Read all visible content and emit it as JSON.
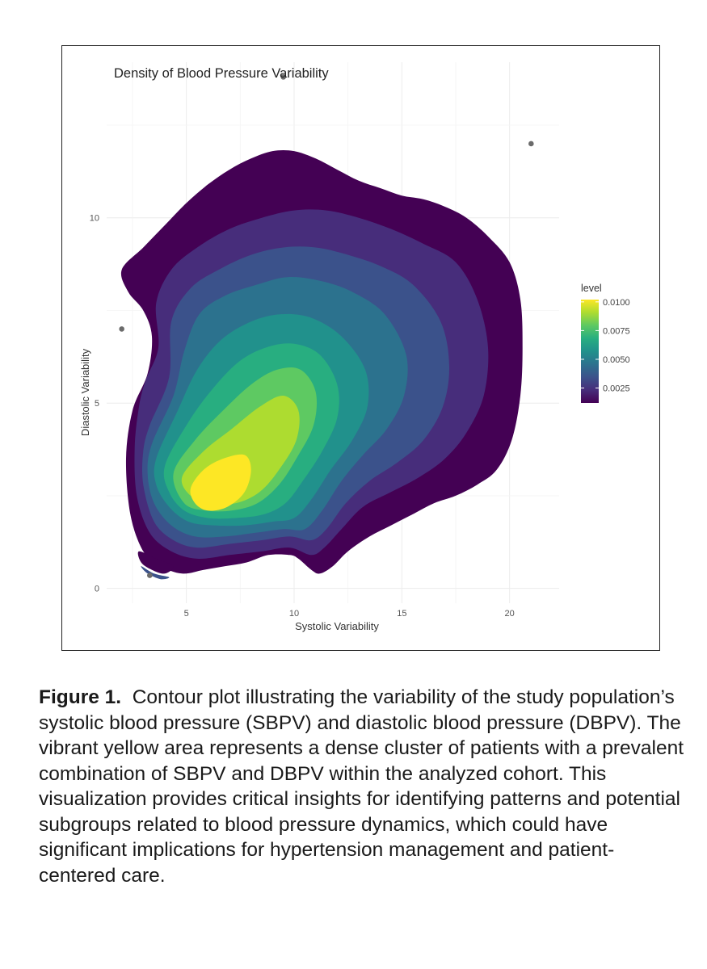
{
  "chart_data": {
    "type": "contour",
    "title": "Density of Blood Pressure Variability",
    "xlabel": "Systolic Variability",
    "ylabel": "Diastolic Variability",
    "xlim": [
      1.3,
      22.3
    ],
    "ylim": [
      -0.4,
      14.2
    ],
    "x_ticks": [
      5,
      10,
      15,
      20
    ],
    "y_ticks": [
      0,
      5,
      10
    ],
    "legend": {
      "title": "level",
      "range": [
        0.0012,
        0.0102
      ],
      "ticks": [
        {
          "value": 0.0025,
          "label": "0.0025"
        },
        {
          "value": 0.005,
          "label": "0.0050"
        },
        {
          "value": 0.0075,
          "label": "0.0075"
        },
        {
          "value": 0.01,
          "label": "0.0100"
        }
      ]
    },
    "peak": {
      "x": 6.5,
      "y": 2.6
    },
    "levels": [
      {
        "level": 0.0012,
        "color": "#440154",
        "polygon": [
          [
            2,
            8.6
          ],
          [
            3,
            9.2
          ],
          [
            4,
            9.8
          ],
          [
            5,
            10.4
          ],
          [
            6,
            10.9
          ],
          [
            7,
            11.3
          ],
          [
            8,
            11.6
          ],
          [
            9,
            11.8
          ],
          [
            10,
            11.8
          ],
          [
            11,
            11.6
          ],
          [
            12,
            11.3
          ],
          [
            13,
            11.0
          ],
          [
            14,
            10.8
          ],
          [
            15,
            10.6
          ],
          [
            16,
            10.5
          ],
          [
            17,
            10.3
          ],
          [
            18,
            10.0
          ],
          [
            19,
            9.5
          ],
          [
            20,
            8.8
          ],
          [
            20.5,
            7.8
          ],
          [
            20.6,
            6.5
          ],
          [
            20.5,
            5.2
          ],
          [
            20.1,
            4.0
          ],
          [
            19.4,
            3.2
          ],
          [
            18.5,
            2.8
          ],
          [
            17.5,
            2.5
          ],
          [
            16.5,
            2.3
          ],
          [
            15.5,
            2.0
          ],
          [
            14.5,
            1.7
          ],
          [
            13.5,
            1.4
          ],
          [
            12.5,
            1.0
          ],
          [
            11.8,
            0.6
          ],
          [
            11.2,
            0.4
          ],
          [
            10.8,
            0.5
          ],
          [
            10.2,
            0.8
          ],
          [
            9.8,
            0.9
          ],
          [
            8.8,
            0.9
          ],
          [
            7.8,
            0.7
          ],
          [
            6.8,
            0.6
          ],
          [
            5.8,
            0.5
          ],
          [
            4.8,
            0.4
          ],
          [
            3.8,
            0.6
          ],
          [
            3.0,
            1.0
          ],
          [
            2.4,
            2.0
          ],
          [
            2.2,
            3.5
          ],
          [
            2.5,
            4.8
          ],
          [
            3.2,
            5.8
          ],
          [
            3.4,
            6.8
          ],
          [
            3.0,
            7.5
          ],
          [
            2.3,
            8.0
          ]
        ]
      },
      {
        "level": 0.0025,
        "color": "#472d7b",
        "polygon": [
          [
            3.1,
            5.6
          ],
          [
            3.7,
            6.5
          ],
          [
            3.6,
            7.7
          ],
          [
            4.3,
            8.6
          ],
          [
            5.5,
            9.2
          ],
          [
            7,
            9.7
          ],
          [
            8.5,
            10.0
          ],
          [
            10,
            10.2
          ],
          [
            11.5,
            10.2
          ],
          [
            13,
            10.0
          ],
          [
            14.5,
            9.7
          ],
          [
            16,
            9.3
          ],
          [
            17.5,
            8.8
          ],
          [
            18.5,
            7.8
          ],
          [
            19.0,
            6.5
          ],
          [
            18.8,
            5.2
          ],
          [
            18.0,
            4.2
          ],
          [
            17.0,
            3.5
          ],
          [
            15.8,
            3.0
          ],
          [
            14.5,
            2.6
          ],
          [
            13.2,
            2.2
          ],
          [
            12.2,
            1.6
          ],
          [
            11.4,
            1.1
          ],
          [
            10.8,
            0.9
          ],
          [
            9.8,
            1.1
          ],
          [
            8.5,
            1.0
          ],
          [
            7.0,
            0.9
          ],
          [
            5.5,
            0.8
          ],
          [
            4.3,
            1.0
          ],
          [
            3.3,
            1.5
          ],
          [
            2.7,
            2.5
          ],
          [
            2.6,
            3.8
          ],
          [
            2.8,
            4.9
          ]
        ]
      },
      {
        "level": 0.0035,
        "color": "#3b528b",
        "polygon": [
          [
            3.3,
            4.4
          ],
          [
            4.2,
            5.7
          ],
          [
            4.3,
            7.2
          ],
          [
            5.2,
            8.1
          ],
          [
            6.5,
            8.6
          ],
          [
            8,
            9.0
          ],
          [
            9.5,
            9.2
          ],
          [
            11,
            9.2
          ],
          [
            12.5,
            9.0
          ],
          [
            14,
            8.7
          ],
          [
            15.5,
            8.2
          ],
          [
            16.8,
            7.2
          ],
          [
            17.2,
            6.0
          ],
          [
            16.9,
            4.9
          ],
          [
            16.0,
            4.0
          ],
          [
            14.8,
            3.4
          ],
          [
            13.5,
            2.9
          ],
          [
            12.4,
            2.3
          ],
          [
            11.5,
            1.6
          ],
          [
            10.8,
            1.3
          ],
          [
            9.8,
            1.4
          ],
          [
            8.5,
            1.3
          ],
          [
            7.0,
            1.2
          ],
          [
            5.5,
            1.1
          ],
          [
            4.4,
            1.3
          ],
          [
            3.5,
            1.8
          ],
          [
            3.0,
            2.8
          ],
          [
            3.0,
            3.7
          ]
        ]
      },
      {
        "level": 0.0045,
        "color": "#2c728e",
        "polygon": [
          [
            3.4,
            3.9
          ],
          [
            4.4,
            5.2
          ],
          [
            4.9,
            6.4
          ],
          [
            5.6,
            7.4
          ],
          [
            6.8,
            7.9
          ],
          [
            8.3,
            8.2
          ],
          [
            9.7,
            8.4
          ],
          [
            11.2,
            8.3
          ],
          [
            12.7,
            8.0
          ],
          [
            14.2,
            7.4
          ],
          [
            15.2,
            6.3
          ],
          [
            15.1,
            5.2
          ],
          [
            14.3,
            4.3
          ],
          [
            13.2,
            3.6
          ],
          [
            12.2,
            2.9
          ],
          [
            11.3,
            2.1
          ],
          [
            10.5,
            1.6
          ],
          [
            9.5,
            1.6
          ],
          [
            8.2,
            1.5
          ],
          [
            6.8,
            1.4
          ],
          [
            5.4,
            1.4
          ],
          [
            4.3,
            1.7
          ],
          [
            3.5,
            2.3
          ],
          [
            3.2,
            3.1
          ]
        ]
      },
      {
        "level": 0.0055,
        "color": "#21918c",
        "polygon": [
          [
            3.6,
            3.5
          ],
          [
            4.6,
            4.8
          ],
          [
            5.5,
            5.9
          ],
          [
            6.6,
            6.7
          ],
          [
            8.0,
            7.2
          ],
          [
            9.4,
            7.4
          ],
          [
            10.8,
            7.3
          ],
          [
            12.2,
            6.8
          ],
          [
            13.3,
            5.9
          ],
          [
            13.4,
            4.9
          ],
          [
            12.7,
            4.0
          ],
          [
            11.7,
            3.2
          ],
          [
            10.8,
            2.4
          ],
          [
            10.0,
            1.9
          ],
          [
            9.0,
            1.8
          ],
          [
            7.7,
            1.7
          ],
          [
            6.3,
            1.7
          ],
          [
            5.1,
            1.8
          ],
          [
            4.2,
            2.2
          ],
          [
            3.6,
            2.8
          ]
        ]
      },
      {
        "level": 0.0065,
        "color": "#28ae80",
        "polygon": [
          [
            4.0,
            3.3
          ],
          [
            5.0,
            4.4
          ],
          [
            6.1,
            5.3
          ],
          [
            7.4,
            6.1
          ],
          [
            8.7,
            6.5
          ],
          [
            10.0,
            6.6
          ],
          [
            11.2,
            6.3
          ],
          [
            12.0,
            5.5
          ],
          [
            12.0,
            4.6
          ],
          [
            11.3,
            3.7
          ],
          [
            10.4,
            2.9
          ],
          [
            9.6,
            2.3
          ],
          [
            8.6,
            2.0
          ],
          [
            7.3,
            1.9
          ],
          [
            6.0,
            1.9
          ],
          [
            4.9,
            2.1
          ],
          [
            4.2,
            2.6
          ]
        ]
      },
      {
        "level": 0.0075,
        "color": "#5ec962",
        "polygon": [
          [
            4.4,
            3.1
          ],
          [
            5.4,
            4.0
          ],
          [
            6.7,
            4.8
          ],
          [
            8.0,
            5.5
          ],
          [
            9.2,
            5.9
          ],
          [
            10.3,
            5.9
          ],
          [
            11.0,
            5.3
          ],
          [
            10.9,
            4.4
          ],
          [
            10.1,
            3.5
          ],
          [
            9.3,
            2.8
          ],
          [
            8.3,
            2.3
          ],
          [
            7.1,
            2.1
          ],
          [
            5.9,
            2.1
          ],
          [
            4.9,
            2.3
          ]
        ]
      },
      {
        "level": 0.0085,
        "color": "#addc30",
        "polygon": [
          [
            4.8,
            3.0
          ],
          [
            5.8,
            3.7
          ],
          [
            7.1,
            4.3
          ],
          [
            8.4,
            4.9
          ],
          [
            9.5,
            5.2
          ],
          [
            10.2,
            4.8
          ],
          [
            10.1,
            4.0
          ],
          [
            9.3,
            3.2
          ],
          [
            8.4,
            2.6
          ],
          [
            7.3,
            2.3
          ],
          [
            6.1,
            2.3
          ],
          [
            5.2,
            2.5
          ]
        ]
      },
      {
        "level": 0.0095,
        "color": "#fde725",
        "polygon": [
          [
            5.2,
            2.7
          ],
          [
            5.8,
            3.2
          ],
          [
            6.7,
            3.5
          ],
          [
            7.7,
            3.6
          ],
          [
            8.0,
            3.2
          ],
          [
            7.7,
            2.6
          ],
          [
            6.9,
            2.2
          ],
          [
            6.0,
            2.1
          ],
          [
            5.4,
            2.3
          ]
        ]
      }
    ],
    "islands": [
      {
        "level": 0.0012,
        "color": "#440154",
        "polygon": [
          [
            2.8,
            1.0
          ],
          [
            3.6,
            0.8
          ],
          [
            4.4,
            0.6
          ],
          [
            4.0,
            0.4
          ],
          [
            3.4,
            0.5
          ],
          [
            2.9,
            0.7
          ]
        ]
      },
      {
        "level": 0.0035,
        "color": "#3b528b",
        "polygon": [
          [
            2.9,
            0.6
          ],
          [
            3.5,
            0.4
          ],
          [
            4.2,
            0.3
          ],
          [
            3.8,
            0.25
          ],
          [
            3.2,
            0.4
          ]
        ]
      }
    ],
    "points": [
      {
        "x": 9.5,
        "y": 13.8
      },
      {
        "x": 21.0,
        "y": 12.0
      },
      {
        "x": 2.0,
        "y": 7.0
      },
      {
        "x": 3.3,
        "y": 0.35
      }
    ]
  },
  "caption": {
    "label": "Figure 1.",
    "text": "Contour plot illustrating the variability of the study population’s systolic blood pressure (SBPV) and diastolic blood pressure (DBPV). The vibrant yellow area represents a dense cluster of patients with a prevalent combination of SBPV and DBPV within the analyzed cohort. This visualization provides critical insights for identifying patterns and potential subgroups related to blood pressure dynamics, which could have significant implications for hypertension management and patient-centered care."
  }
}
